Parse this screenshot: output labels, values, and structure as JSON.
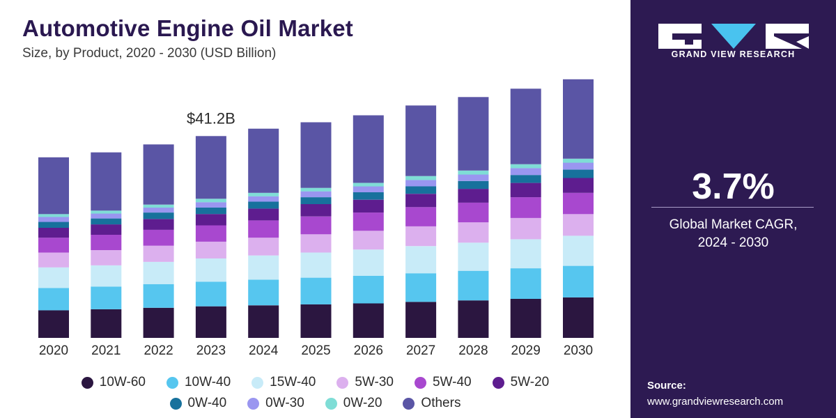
{
  "header": {
    "title": "Automotive Engine Oil Market",
    "subtitle": "Size, by Product, 2020 - 2030 (USD Billion)"
  },
  "chart_data": {
    "type": "bar",
    "stacked": true,
    "categories": [
      "2020",
      "2021",
      "2022",
      "2023",
      "2024",
      "2025",
      "2026",
      "2027",
      "2028",
      "2029",
      "2030"
    ],
    "series": [
      {
        "name": "10W-60",
        "color": "#2b1640",
        "values": [
          5.6,
          5.8,
          6.1,
          6.4,
          6.6,
          6.8,
          7.0,
          7.3,
          7.6,
          7.9,
          8.2
        ]
      },
      {
        "name": "10W-40",
        "color": "#56c6ef",
        "values": [
          4.5,
          4.6,
          4.8,
          5.0,
          5.2,
          5.4,
          5.6,
          5.8,
          6.0,
          6.2,
          6.4
        ]
      },
      {
        "name": "15W-40",
        "color": "#c8ebf8",
        "values": [
          4.2,
          4.3,
          4.5,
          4.7,
          4.9,
          5.1,
          5.3,
          5.5,
          5.7,
          5.9,
          6.1
        ]
      },
      {
        "name": "5W-30",
        "color": "#dcb0ee",
        "values": [
          3.0,
          3.1,
          3.3,
          3.4,
          3.6,
          3.7,
          3.8,
          4.0,
          4.1,
          4.3,
          4.4
        ]
      },
      {
        "name": "5W-40",
        "color": "#a848cf",
        "values": [
          3.0,
          3.1,
          3.2,
          3.3,
          3.5,
          3.6,
          3.7,
          3.9,
          4.0,
          4.2,
          4.3
        ]
      },
      {
        "name": "5W-20",
        "color": "#5e1d8f",
        "values": [
          2.0,
          2.1,
          2.2,
          2.3,
          2.4,
          2.5,
          2.6,
          2.7,
          2.8,
          2.9,
          3.0
        ]
      },
      {
        "name": "0W-40",
        "color": "#17719c",
        "values": [
          1.2,
          1.2,
          1.3,
          1.3,
          1.4,
          1.4,
          1.5,
          1.5,
          1.6,
          1.6,
          1.7
        ]
      },
      {
        "name": "0W-30",
        "color": "#9a96f0",
        "values": [
          1.0,
          1.0,
          1.0,
          1.1,
          1.1,
          1.2,
          1.2,
          1.3,
          1.3,
          1.4,
          1.4
        ]
      },
      {
        "name": "0W-20",
        "color": "#7fddd6",
        "values": [
          0.6,
          0.6,
          0.6,
          0.7,
          0.7,
          0.7,
          0.7,
          0.8,
          0.8,
          0.8,
          0.8
        ]
      },
      {
        "name": "Others",
        "color": "#5a55a5",
        "values": [
          11.5,
          11.8,
          12.2,
          12.7,
          13.0,
          13.3,
          13.7,
          14.3,
          14.9,
          15.3,
          16.1
        ]
      }
    ],
    "annotations": [
      {
        "category": "2023",
        "text": "$41.2B"
      }
    ],
    "ylim": [
      0,
      60
    ]
  },
  "sidebar": {
    "brand": "GRAND VIEW RESEARCH",
    "cagr_value": "3.7%",
    "cagr_label_line1": "Global Market CAGR,",
    "cagr_label_line2": "2024 - 2030",
    "source_label": "Source:",
    "source_url": "www.grandviewresearch.com"
  }
}
